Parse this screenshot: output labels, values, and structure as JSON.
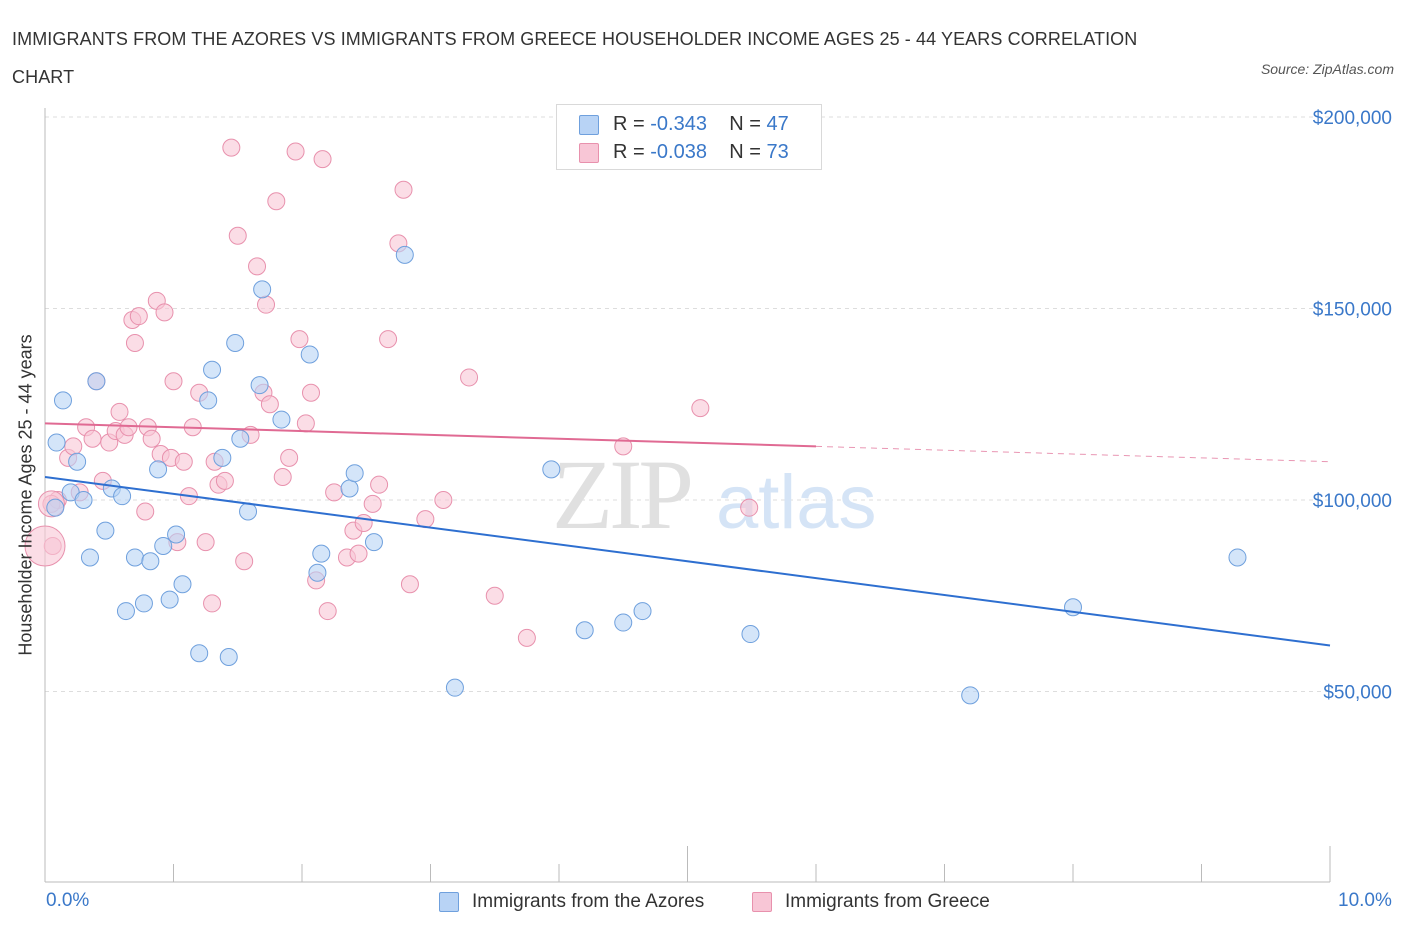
{
  "title": "IMMIGRANTS FROM THE AZORES VS IMMIGRANTS FROM GREECE HOUSEHOLDER INCOME AGES 25 - 44 YEARS CORRELATION CHART",
  "source": "Source: ZipAtlas.com",
  "watermark": {
    "zip": "ZIP",
    "atlas": "atlas"
  },
  "legend": {
    "azores": {
      "r_label": "R =",
      "r_value": "-0.343",
      "n_label": "N =",
      "n_value": "47"
    },
    "greece": {
      "r_label": "R =",
      "r_value": "-0.038",
      "n_label": "N =",
      "n_value": "73"
    }
  },
  "colors": {
    "azores_fill": "#b8d3f5",
    "azores_stroke": "#6fa0dd",
    "azores_line": "#2e6fd0",
    "greece_fill": "#f8c6d6",
    "greece_stroke": "#e891ad",
    "greece_line": "#e06a93",
    "axis_text": "#3a78c9",
    "grid": "#dddddd"
  },
  "chart_data": {
    "type": "scatter",
    "title": "IMMIGRANTS FROM THE AZORES VS IMMIGRANTS FROM GREECE HOUSEHOLDER INCOME AGES 25 - 44 YEARS CORRELATION CHART",
    "xlabel": "",
    "ylabel": "Householder Income Ages 25 - 44 years",
    "xlim": [
      0,
      10
    ],
    "ylim": [
      0,
      200000
    ],
    "x_tick_labels": [
      "0.0%",
      "10.0%"
    ],
    "y_ticks": [
      50000,
      100000,
      150000,
      200000
    ],
    "y_tick_labels": [
      "$50,000",
      "$100,000",
      "$150,000",
      "$200,000"
    ],
    "grid": true,
    "legend_position": "top-center",
    "series": [
      {
        "name": "Immigrants from the Azores",
        "trend": {
          "x": [
            0,
            10
          ],
          "y": [
            106000,
            62000
          ]
        },
        "points": [
          [
            0.08,
            98000
          ],
          [
            0.09,
            115000
          ],
          [
            0.14,
            126000
          ],
          [
            0.2,
            102000
          ],
          [
            0.25,
            110000
          ],
          [
            0.3,
            100000
          ],
          [
            0.35,
            85000
          ],
          [
            0.4,
            131000
          ],
          [
            0.47,
            92000
          ],
          [
            0.52,
            103000
          ],
          [
            0.6,
            101000
          ],
          [
            0.63,
            71000
          ],
          [
            0.7,
            85000
          ],
          [
            0.77,
            73000
          ],
          [
            0.82,
            84000
          ],
          [
            0.88,
            108000
          ],
          [
            0.92,
            88000
          ],
          [
            0.97,
            74000
          ],
          [
            1.02,
            91000
          ],
          [
            1.07,
            78000
          ],
          [
            1.2,
            60000
          ],
          [
            1.27,
            126000
          ],
          [
            1.3,
            134000
          ],
          [
            1.38,
            111000
          ],
          [
            1.43,
            59000
          ],
          [
            1.48,
            141000
          ],
          [
            1.52,
            116000
          ],
          [
            1.58,
            97000
          ],
          [
            1.67,
            130000
          ],
          [
            1.69,
            155000
          ],
          [
            1.84,
            121000
          ],
          [
            2.06,
            138000
          ],
          [
            2.12,
            81000
          ],
          [
            2.15,
            86000
          ],
          [
            2.37,
            103000
          ],
          [
            2.41,
            107000
          ],
          [
            2.56,
            89000
          ],
          [
            2.8,
            164000
          ],
          [
            3.19,
            51000
          ],
          [
            3.94,
            108000
          ],
          [
            4.2,
            66000
          ],
          [
            4.5,
            68000
          ],
          [
            4.65,
            71000
          ],
          [
            5.49,
            65000
          ],
          [
            7.2,
            49000
          ],
          [
            8.0,
            72000
          ],
          [
            9.28,
            85000
          ]
        ]
      },
      {
        "name": "Immigrants from Greece",
        "trend": {
          "x": [
            0,
            6
          ],
          "y": [
            120000,
            114000
          ]
        },
        "trend_dashed": {
          "x": [
            6,
            10
          ],
          "y": [
            114000,
            110000
          ]
        },
        "points": [
          [
            0.06,
            88000
          ],
          [
            0.1,
            100000
          ],
          [
            0.18,
            111000
          ],
          [
            0.22,
            114000
          ],
          [
            0.27,
            102000
          ],
          [
            0.32,
            119000
          ],
          [
            0.37,
            116000
          ],
          [
            0.4,
            131000
          ],
          [
            0.45,
            105000
          ],
          [
            0.5,
            115000
          ],
          [
            0.55,
            118000
          ],
          [
            0.58,
            123000
          ],
          [
            0.62,
            117000
          ],
          [
            0.65,
            119000
          ],
          [
            0.68,
            147000
          ],
          [
            0.7,
            141000
          ],
          [
            0.73,
            148000
          ],
          [
            0.78,
            97000
          ],
          [
            0.8,
            119000
          ],
          [
            0.83,
            116000
          ],
          [
            0.87,
            152000
          ],
          [
            0.9,
            112000
          ],
          [
            0.93,
            149000
          ],
          [
            0.98,
            111000
          ],
          [
            1.0,
            131000
          ],
          [
            1.03,
            89000
          ],
          [
            1.08,
            110000
          ],
          [
            1.12,
            101000
          ],
          [
            1.15,
            119000
          ],
          [
            1.2,
            128000
          ],
          [
            1.25,
            89000
          ],
          [
            1.3,
            73000
          ],
          [
            1.32,
            110000
          ],
          [
            1.35,
            104000
          ],
          [
            1.4,
            105000
          ],
          [
            1.45,
            192000
          ],
          [
            1.5,
            169000
          ],
          [
            1.55,
            84000
          ],
          [
            1.6,
            117000
          ],
          [
            1.65,
            161000
          ],
          [
            1.7,
            128000
          ],
          [
            1.72,
            151000
          ],
          [
            1.75,
            125000
          ],
          [
            1.8,
            178000
          ],
          [
            1.85,
            106000
          ],
          [
            1.9,
            111000
          ],
          [
            1.95,
            191000
          ],
          [
            1.98,
            142000
          ],
          [
            2.03,
            120000
          ],
          [
            2.07,
            128000
          ],
          [
            2.11,
            79000
          ],
          [
            2.16,
            189000
          ],
          [
            2.2,
            71000
          ],
          [
            2.25,
            102000
          ],
          [
            2.35,
            85000
          ],
          [
            2.4,
            92000
          ],
          [
            2.44,
            86000
          ],
          [
            2.48,
            94000
          ],
          [
            2.55,
            99000
          ],
          [
            2.6,
            104000
          ],
          [
            2.67,
            142000
          ],
          [
            2.75,
            167000
          ],
          [
            2.79,
            181000
          ],
          [
            2.84,
            78000
          ],
          [
            2.96,
            95000
          ],
          [
            3.1,
            100000
          ],
          [
            3.3,
            132000
          ],
          [
            3.5,
            75000
          ],
          [
            3.75,
            64000
          ],
          [
            4.5,
            114000
          ],
          [
            5.1,
            124000
          ],
          [
            5.48,
            98000
          ],
          [
            0.05,
            99000
          ]
        ]
      }
    ]
  },
  "bottom_legend": {
    "azores": "Immigrants from the Azores",
    "greece": "Immigrants from Greece"
  }
}
